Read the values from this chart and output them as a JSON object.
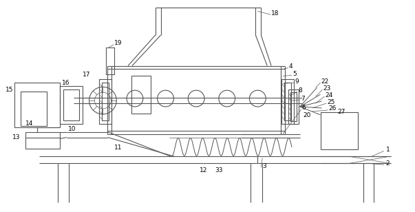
{
  "bg_color": "#ffffff",
  "line_color": "#555555",
  "lw": 0.8,
  "tlw": 0.5,
  "fig_width": 6.03,
  "fig_height": 3.08,
  "dpi": 100
}
